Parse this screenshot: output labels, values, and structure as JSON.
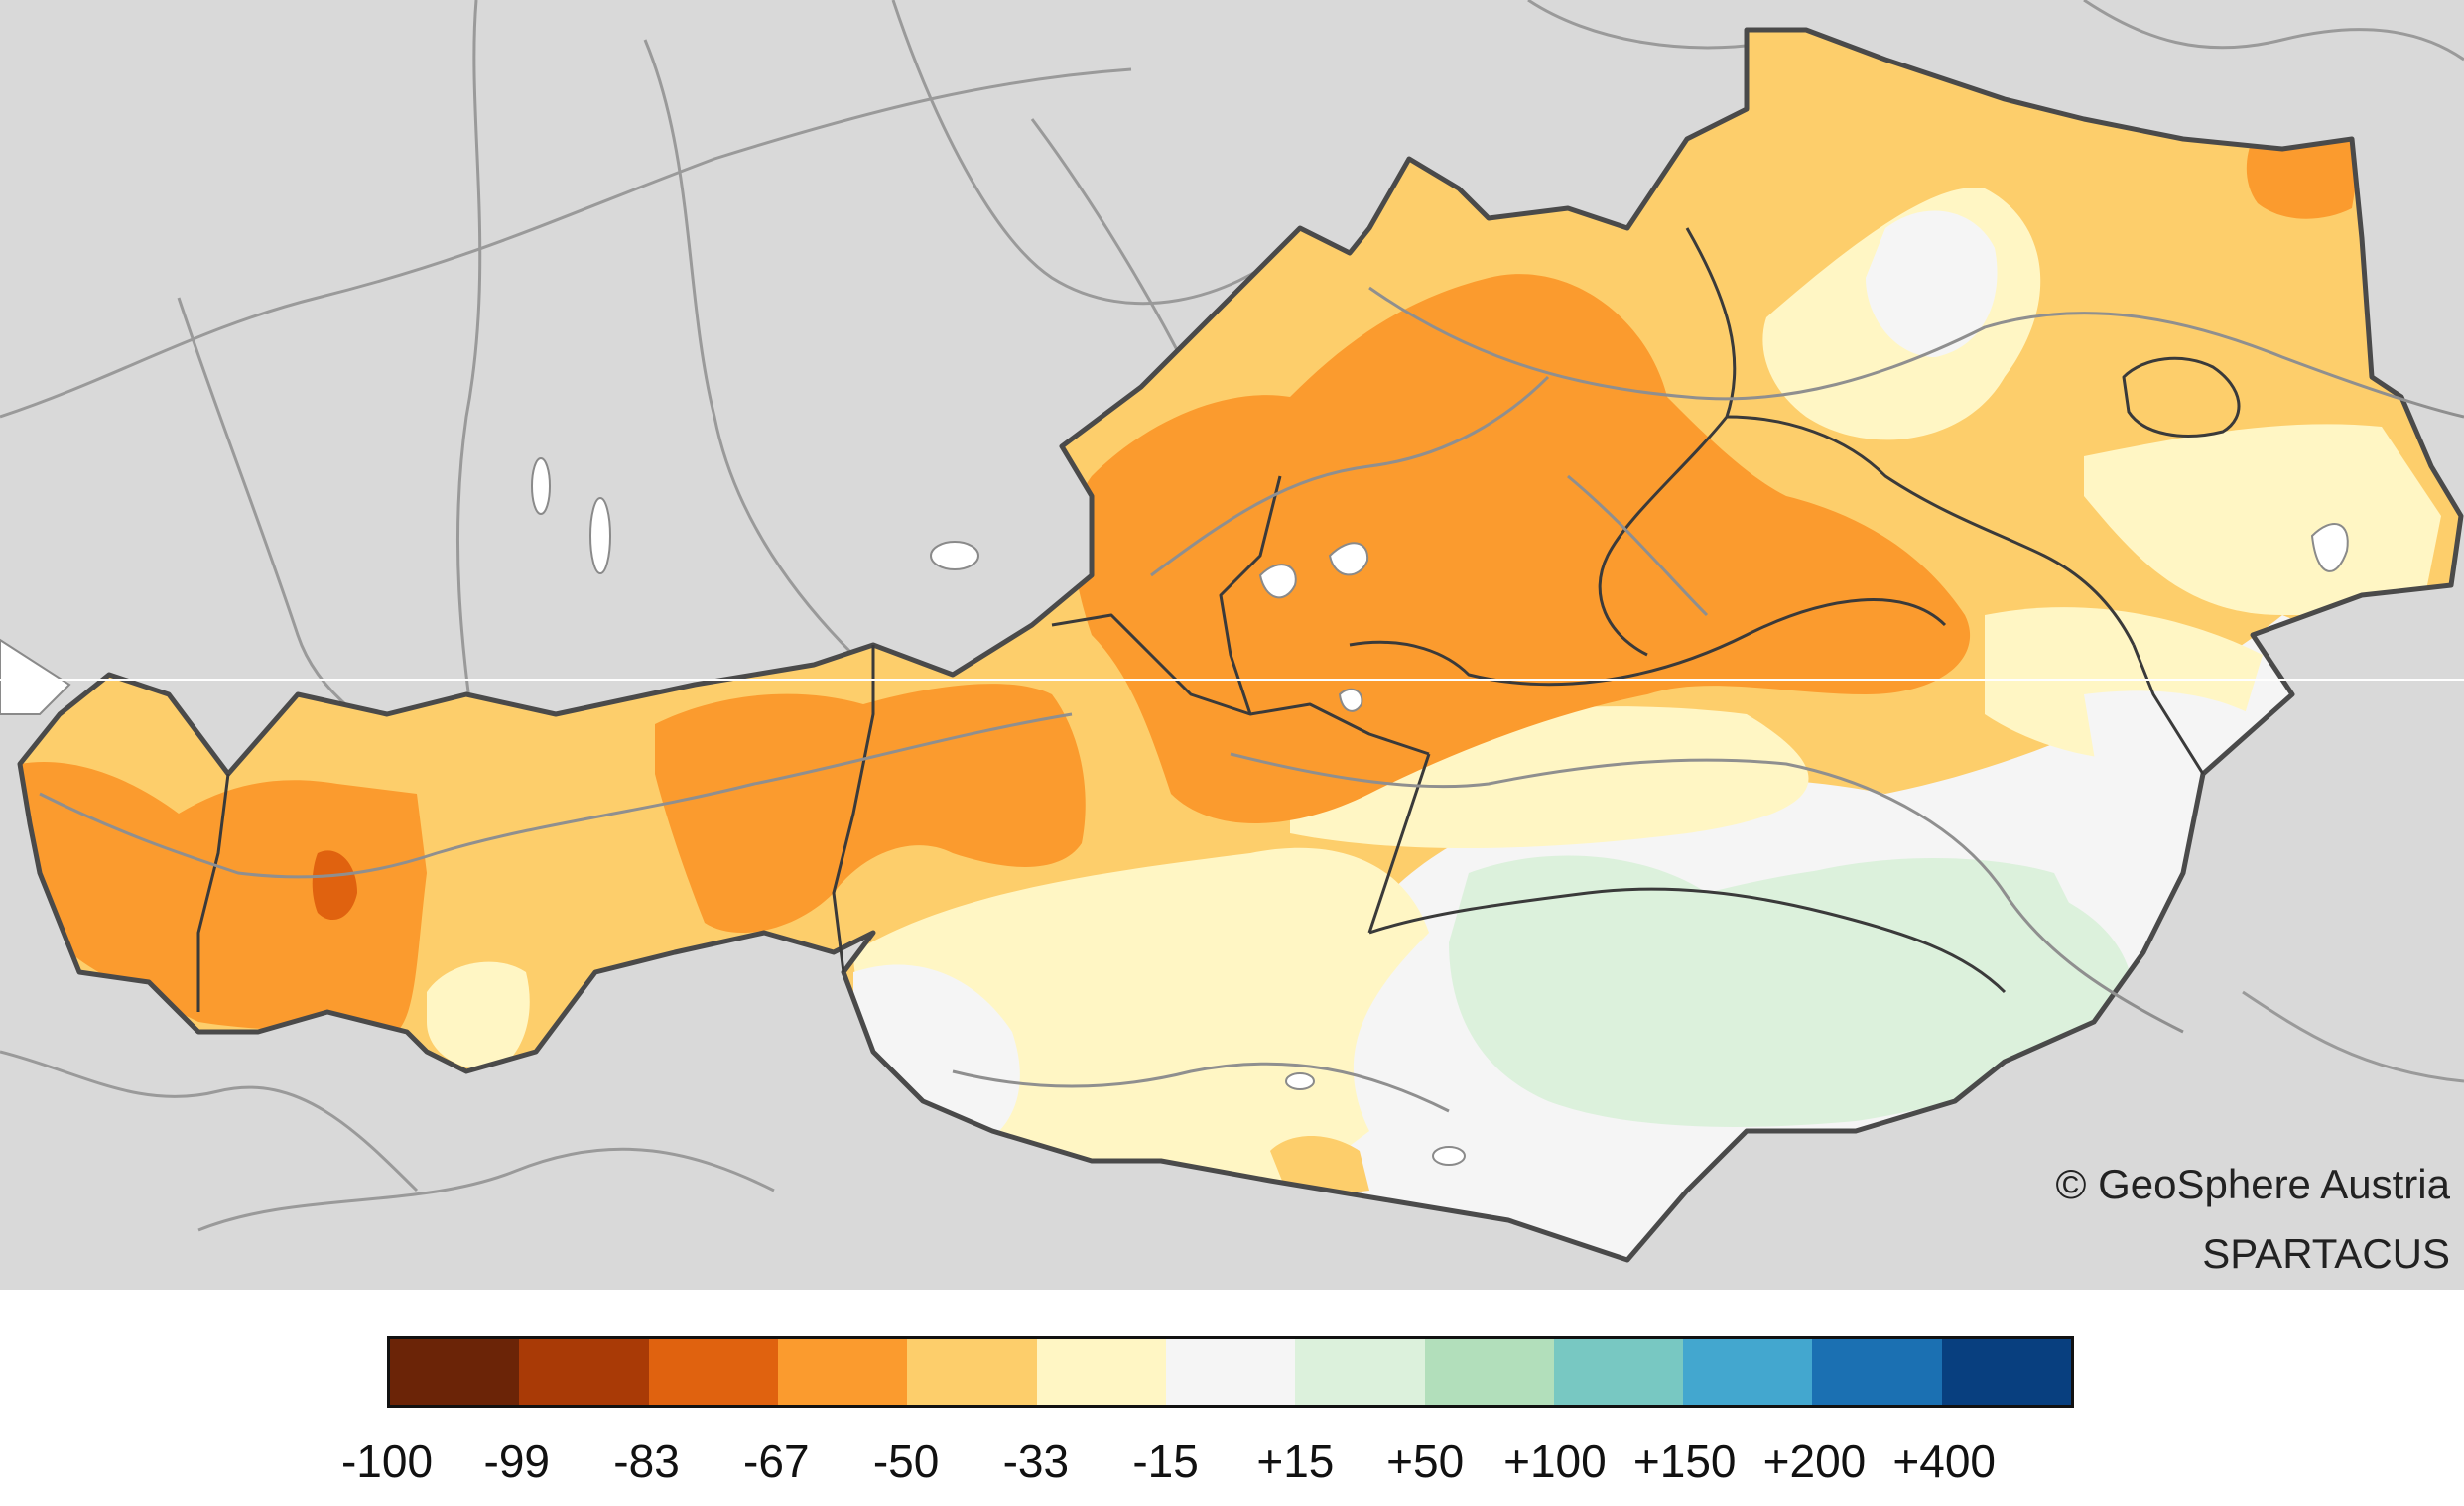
{
  "map": {
    "colors": {
      "background": "#d9d9d9",
      "country_border": "#4a4a4a",
      "state_border": "#3a3a3a",
      "rivers": "#9a9a9a",
      "lakes": "#ffffff"
    }
  },
  "credits": {
    "copyright": "© GeoSphere Austria",
    "dataset": "SPARTACUS"
  },
  "legend": {
    "classes": [
      {
        "color": "#6b2407"
      },
      {
        "color": "#a93a06"
      },
      {
        "color": "#e0620f"
      },
      {
        "color": "#fb9b2e"
      },
      {
        "color": "#fdce6b"
      },
      {
        "color": "#fff6c4"
      },
      {
        "color": "#f5f5f5"
      },
      {
        "color": "#dcf1dc"
      },
      {
        "color": "#b2dfbb"
      },
      {
        "color": "#78c8c2"
      },
      {
        "color": "#43a7cf"
      },
      {
        "color": "#1b70b2"
      },
      {
        "color": "#083f7f"
      }
    ],
    "tick_labels": [
      "-100",
      "-99",
      "-83",
      "-67",
      "-50",
      "-33",
      "-15",
      "+15",
      "+50",
      "+100",
      "+150",
      "+200",
      "+400"
    ]
  }
}
